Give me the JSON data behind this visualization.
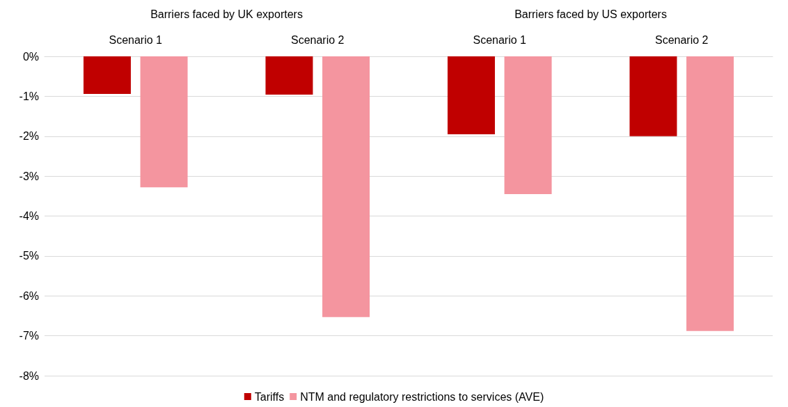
{
  "chart_data": {
    "type": "bar",
    "categories": [
      "Scenario 1",
      "Scenario 2",
      "Scenario 1",
      "Scenario 2"
    ],
    "annotations": [
      "Barriers faced by UK exporters",
      "Barriers faced by US exporters"
    ],
    "series": [
      {
        "name": "Tariffs",
        "color": "#c00000",
        "values": [
          -0.94,
          -0.96,
          -1.95,
          -2.0
        ]
      },
      {
        "name": "NTM and regulatory restrictions to services (AVE)",
        "color": "#f4959f",
        "values": [
          -3.28,
          -6.53,
          -3.45,
          -6.88
        ]
      }
    ],
    "ylim": [
      -8,
      0
    ],
    "yticks": [
      {
        "value": -8,
        "label": "-8%"
      },
      {
        "value": -7,
        "label": "-7%"
      },
      {
        "value": -6,
        "label": "-6%"
      },
      {
        "value": -5,
        "label": "-5%"
      },
      {
        "value": -4,
        "label": "-4%"
      },
      {
        "value": -3,
        "label": "-3%"
      },
      {
        "value": -2,
        "label": "-2%"
      },
      {
        "value": -1,
        "label": "-1%"
      },
      {
        "value": 0,
        "label": "0%"
      }
    ],
    "grid": "y",
    "legend": "bottom"
  }
}
